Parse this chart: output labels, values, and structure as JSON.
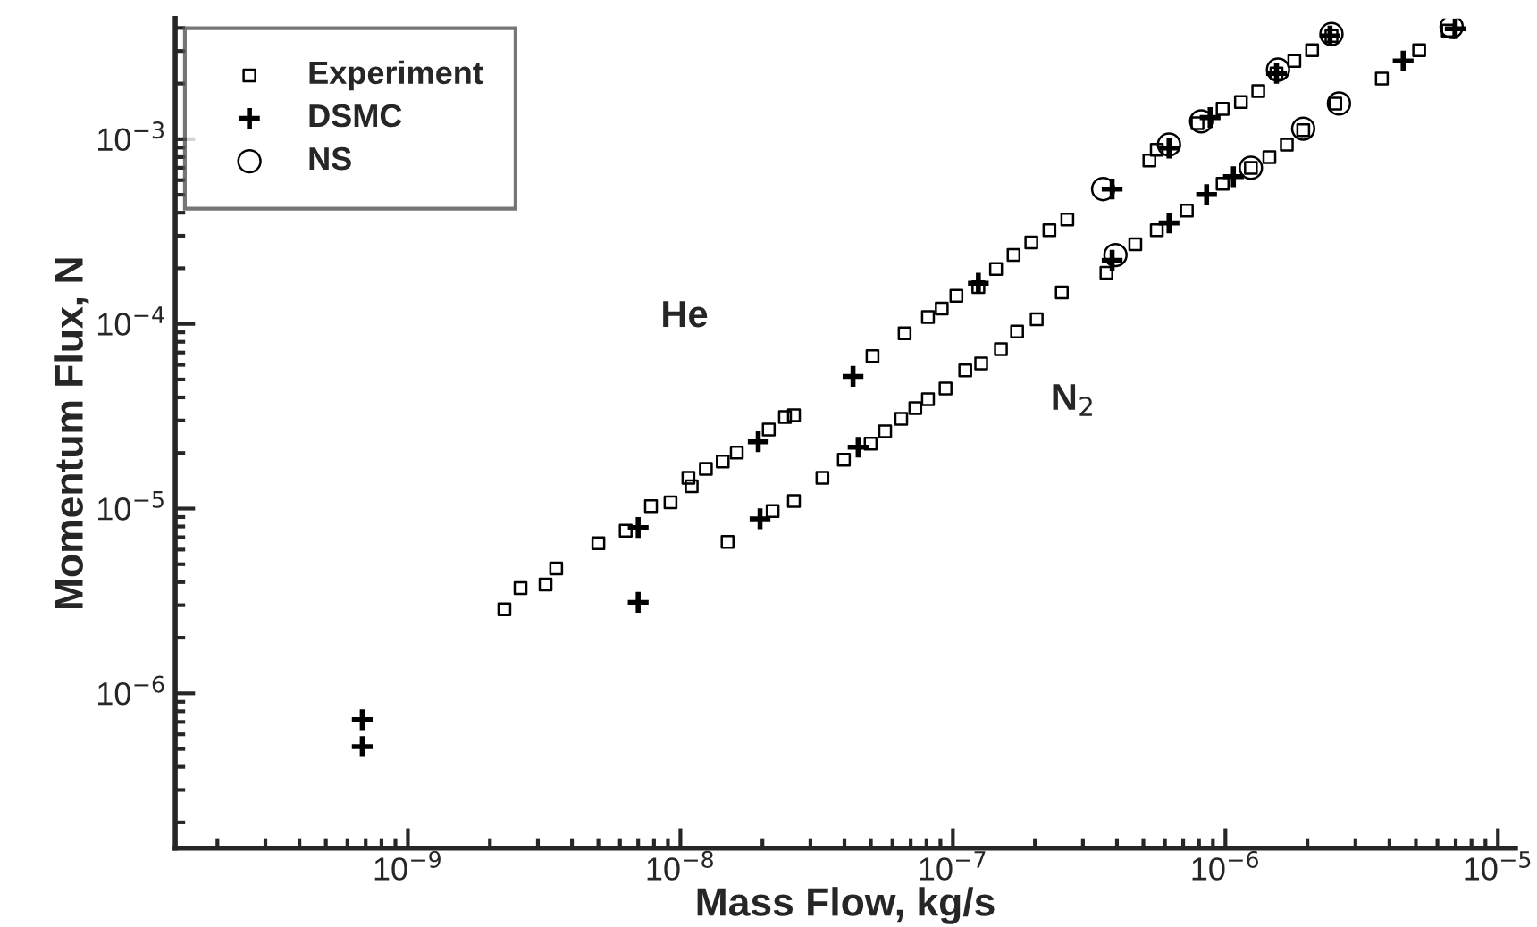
{
  "chart_data": {
    "type": "scatter",
    "xlabel": "Mass Flow, kg/s",
    "ylabel": "Momentum Flux, N",
    "log": "xy",
    "grid": false,
    "legend": "top left",
    "xlim": [
      1.4e-10,
      1.16e-05
    ],
    "ylim": [
      1.45e-07,
      0.0045
    ],
    "xticks": [
      {
        "value": 1e-09,
        "label": "10$^{−9}$"
      },
      {
        "value": 1e-08,
        "label": "10$^{−8}$"
      },
      {
        "value": 1e-07,
        "label": "10$^{−7}$"
      },
      {
        "value": 1e-06,
        "label": "10$^{−6}$"
      },
      {
        "value": 1e-05,
        "label": "10$^{−5}$"
      }
    ],
    "yticks": [
      {
        "value": 1e-06,
        "label": "10$^{−6}$"
      },
      {
        "value": 1e-05,
        "label": "10$^{−5}$"
      },
      {
        "value": 0.0001,
        "label": "10$^{−4}$"
      },
      {
        "value": 0.001,
        "label": "10$^{−3}$"
      }
    ],
    "annotations": [
      "He",
      "N$_{2}$"
    ],
    "series": [
      {
        "name": "Experiment",
        "color": "#000000",
        "marker": "square",
        "x": [
          2.26e-09,
          2.59e-09,
          3.2e-09,
          3.5e-09,
          5e-09,
          6.3e-09,
          7.8e-09,
          9.2e-09,
          1.07e-08,
          1.1e-08,
          1.24e-08,
          1.43e-08,
          1.61e-08,
          2.11e-08,
          2.42e-08,
          2.61e-08,
          5.07e-08,
          6.65e-08,
          8.1e-08,
          9.1e-08,
          1.03e-07,
          1.24e-07,
          1.44e-07,
          1.67e-07,
          1.94e-07,
          2.26e-07,
          2.63e-07,
          5.26e-07,
          5.6e-07,
          7.9e-07,
          9.77e-07,
          1.14e-06,
          1.32e-06,
          1.54e-06,
          1.79e-06,
          2.08e-06,
          2.45e-06,
          1.49e-08,
          2.18e-08,
          2.61e-08,
          3.32e-08,
          3.98e-08,
          4.99e-08,
          5.64e-08,
          6.46e-08,
          7.28e-08,
          8.1e-08,
          9.4e-08,
          1.11e-07,
          1.27e-07,
          1.5e-07,
          1.72e-07,
          2.03e-07,
          2.51e-07,
          3.66e-07,
          4.67e-07,
          5.6e-07,
          7.22e-07,
          9.77e-07,
          1.24e-06,
          1.45e-06,
          1.68e-06,
          1.93e-06,
          2.53e-06,
          3.75e-06,
          5.14e-06,
          6.55e-06
        ],
        "values": [
          2.85e-06,
          3.71e-06,
          3.88e-06,
          4.74e-06,
          6.5e-06,
          7.6e-06,
          1.03e-05,
          1.08e-05,
          1.47e-05,
          1.32e-05,
          1.64e-05,
          1.8e-05,
          2.01e-05,
          2.68e-05,
          3.13e-05,
          3.2e-05,
          6.7e-05,
          8.9e-05,
          0.000109,
          0.000121,
          0.000142,
          0.000158,
          0.000198,
          0.000236,
          0.000276,
          0.000322,
          0.000368,
          0.000766,
          0.000875,
          0.00122,
          0.00146,
          0.00159,
          0.00182,
          0.00227,
          0.00265,
          0.00303,
          0.00362,
          6.6e-06,
          9.7e-06,
          1.1e-05,
          1.47e-05,
          1.84e-05,
          2.25e-05,
          2.62e-05,
          3.06e-05,
          3.5e-05,
          3.91e-05,
          4.47e-05,
          5.6e-05,
          6.1e-05,
          7.3e-05,
          9.1e-05,
          0.000106,
          0.000148,
          0.000189,
          0.00027,
          0.000322,
          0.000411,
          0.000574,
          0.0007,
          0.0008,
          0.000935,
          0.00112,
          0.00156,
          0.00213,
          0.00303,
          0.00387
        ]
      },
      {
        "name": "DSMC",
        "color": "#000000",
        "marker": "cross",
        "x": [
          6.8e-10,
          7e-09,
          1.93e-08,
          4.3e-08,
          1.24e-07,
          3.84e-07,
          6.21e-07,
          8.79e-07,
          1.54e-06,
          2.42e-06,
          6.8e-10,
          7e-09,
          1.96e-08,
          4.49e-08,
          3.84e-07,
          6.21e-07,
          8.53e-07,
          1.07e-06,
          4.49e-06,
          6.97e-06
        ],
        "values": [
          7.2e-07,
          7.9e-06,
          2.3e-05,
          5.2e-05,
          0.000166,
          0.000537,
          0.000895,
          0.00131,
          0.00227,
          0.00362,
          5.15e-07,
          3.11e-06,
          8.8e-06,
          2.15e-05,
          0.000221,
          0.000352,
          0.000502,
          0.000627,
          0.00265,
          0.00396
        ]
      },
      {
        "name": "NS",
        "color": "#000000",
        "marker": "circle",
        "x": [
          3.56e-07,
          6.21e-07,
          8.15e-07,
          1.56e-06,
          2.45e-06,
          3.95e-07,
          1.24e-06,
          1.93e-06,
          2.61e-06,
          6.76e-06
        ],
        "values": [
          0.000537,
          0.000935,
          0.00125,
          0.00238,
          0.00371,
          0.000236,
          0.0007,
          0.00114,
          0.00156,
          0.00406
        ]
      }
    ]
  }
}
